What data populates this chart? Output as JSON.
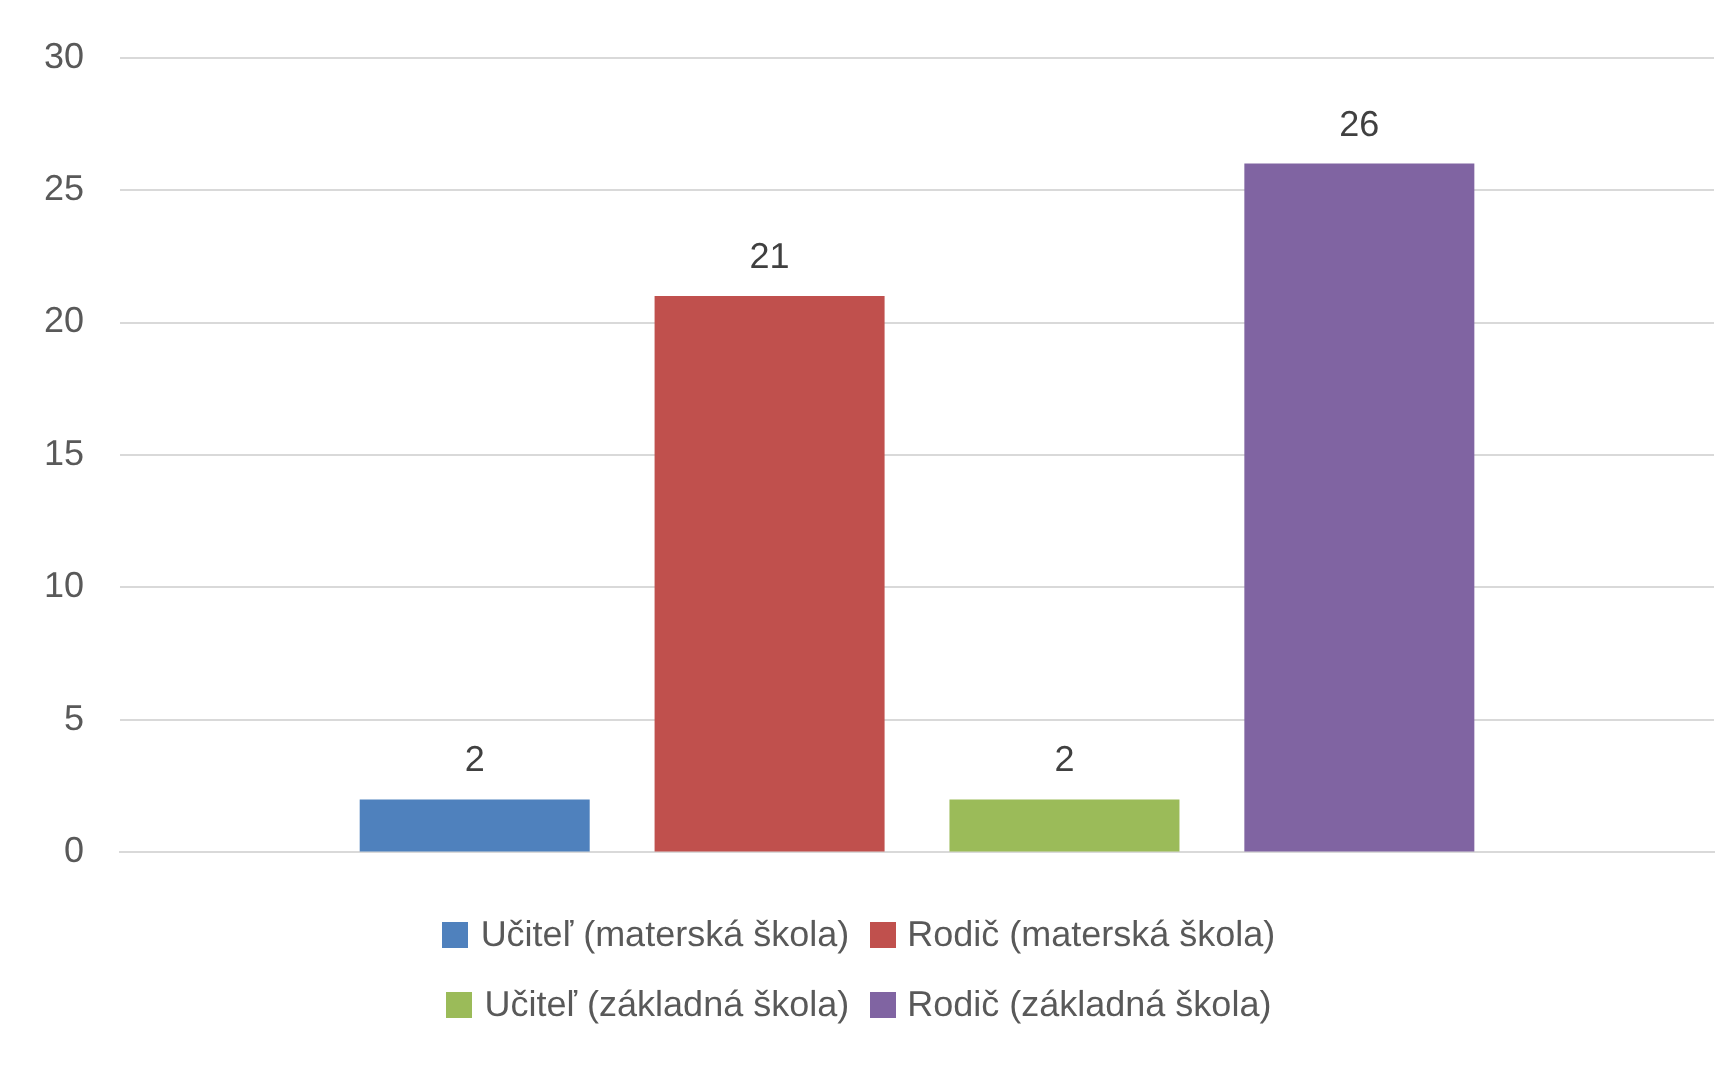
{
  "chart_data": {
    "type": "bar",
    "categories": [
      null
    ],
    "series": [
      {
        "name": "Učiteľ (materská škola)",
        "color": "#4f81bd",
        "values": [
          2
        ]
      },
      {
        "name": "Rodič (materská škola)",
        "color": "#c0504d",
        "values": [
          21
        ]
      },
      {
        "name": "Učiteľ (základná škola)",
        "color": "#9bbb59",
        "values": [
          2
        ]
      },
      {
        "name": "Rodič (základná škola)",
        "color": "#8064a2",
        "values": [
          26
        ]
      }
    ],
    "ylim": [
      0,
      30
    ],
    "yticks": [
      0,
      5,
      10,
      15,
      20,
      25,
      30
    ],
    "grid": "y",
    "legend": "bottom",
    "data_labels": true
  }
}
